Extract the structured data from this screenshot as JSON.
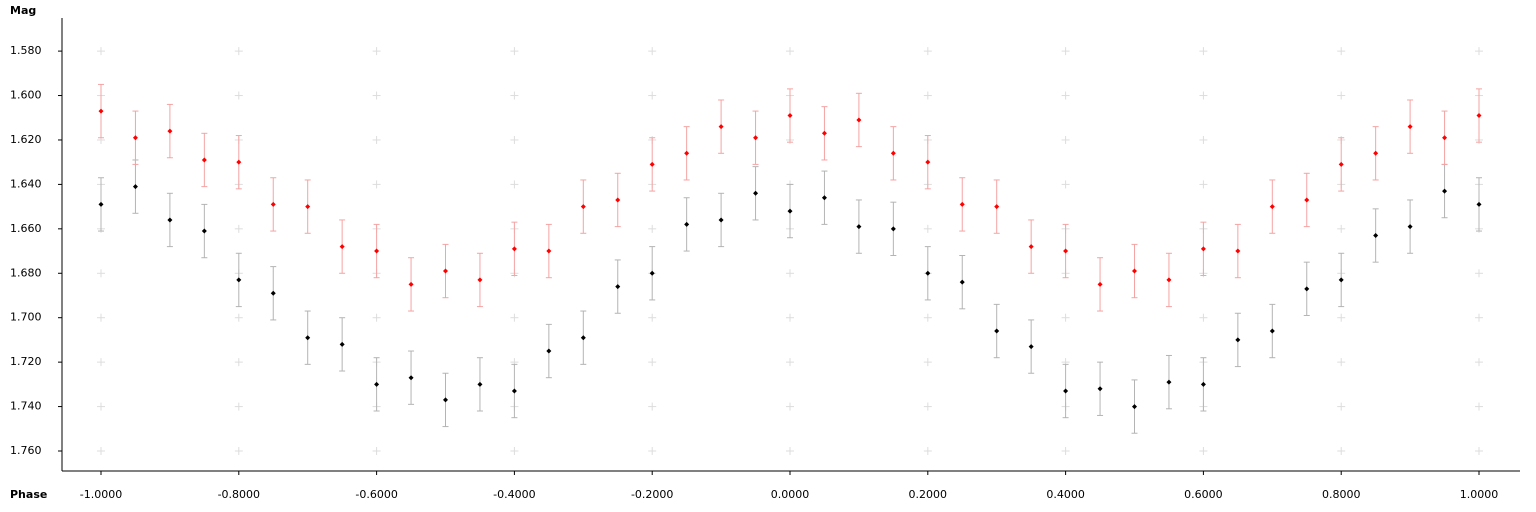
{
  "chart_data": {
    "type": "scatter",
    "xlabel": "Phase",
    "ylabel": "Mag",
    "xlim": [
      -1.0566,
      1.0595
    ],
    "ylim": [
      1.5651,
      1.769
    ],
    "y_inverted": true,
    "grid": true,
    "xticks": [
      {
        "value": -1,
        "label": "-1.0000"
      },
      {
        "value": -0.8,
        "label": "-0.8000"
      },
      {
        "value": -0.6,
        "label": "-0.6000"
      },
      {
        "value": -0.4,
        "label": "-0.4000"
      },
      {
        "value": -0.2,
        "label": "-0.2000"
      },
      {
        "value": 0,
        "label": "0.0000"
      },
      {
        "value": 0.2,
        "label": "0.2000"
      },
      {
        "value": 0.4,
        "label": "0.4000"
      },
      {
        "value": 0.6,
        "label": "0.6000"
      },
      {
        "value": 0.8,
        "label": "0.8000"
      },
      {
        "value": 1,
        "label": "1.0000"
      }
    ],
    "yticks": [
      {
        "value": 1.58,
        "label": "1.580"
      },
      {
        "value": 1.6,
        "label": "1.600"
      },
      {
        "value": 1.62,
        "label": "1.620"
      },
      {
        "value": 1.64,
        "label": "1.640"
      },
      {
        "value": 1.66,
        "label": "1.660"
      },
      {
        "value": 1.68,
        "label": "1.680"
      },
      {
        "value": 1.7,
        "label": "1.700"
      },
      {
        "value": 1.72,
        "label": "1.720"
      },
      {
        "value": 1.74,
        "label": "1.740"
      },
      {
        "value": 1.76,
        "label": "1.760"
      }
    ],
    "x": [
      -1,
      -0.95,
      -0.9,
      -0.85,
      -0.8,
      -0.75,
      -0.7,
      -0.65,
      -0.6,
      -0.55,
      -0.5,
      -0.45,
      -0.4,
      -0.35,
      -0.3,
      -0.25,
      -0.2,
      -0.15,
      -0.1,
      -0.05,
      0,
      0.05,
      0.1,
      0.15,
      0.2,
      0.25,
      0.3,
      0.35,
      0.4,
      0.45,
      0.5,
      0.55,
      0.6,
      0.65,
      0.7,
      0.75,
      0.8,
      0.85,
      0.9,
      0.95,
      1
    ],
    "series": [
      {
        "color": "#000000",
        "error_color": "#b4b4b4",
        "error": 0.012,
        "values": [
          1.649,
          1.641,
          1.656,
          1.661,
          1.683,
          1.689,
          1.709,
          1.712,
          1.73,
          1.727,
          1.737,
          1.73,
          1.733,
          1.715,
          1.709,
          1.686,
          1.68,
          1.658,
          1.656,
          1.644,
          1.652,
          1.646,
          1.659,
          1.66,
          1.68,
          1.684,
          1.706,
          1.713,
          1.733,
          1.732,
          1.74,
          1.729,
          1.73,
          1.71,
          1.706,
          1.687,
          1.683,
          1.663,
          1.659,
          1.643,
          1.649
        ]
      },
      {
        "color": "#ff0000",
        "error_color": "#f5a3a3",
        "error": 0.012,
        "values": [
          1.607,
          1.619,
          1.616,
          1.629,
          1.63,
          1.649,
          1.65,
          1.668,
          1.67,
          1.685,
          1.679,
          1.683,
          1.669,
          1.67,
          1.65,
          1.647,
          1.631,
          1.626,
          1.614,
          1.619,
          1.609,
          1.617,
          1.611,
          1.626,
          1.63,
          1.649,
          1.65,
          1.668,
          1.67,
          1.685,
          1.679,
          1.683,
          1.669,
          1.67,
          1.65,
          1.647,
          1.631,
          1.626,
          1.614,
          1.619,
          1.609
        ]
      }
    ]
  }
}
